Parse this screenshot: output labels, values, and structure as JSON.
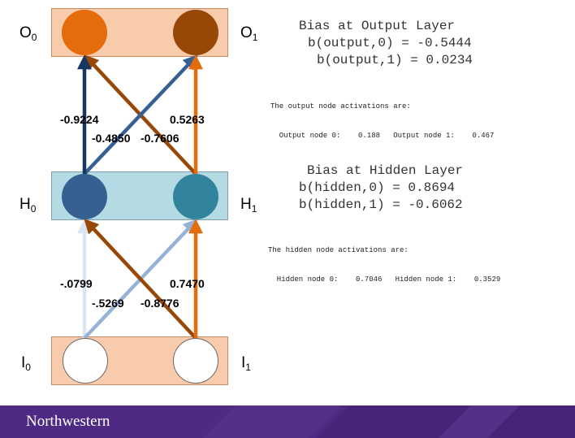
{
  "colors": {
    "layer_fill_orange": "#f8cbad",
    "layer_fill_blue": "#b4dbe3",
    "footer_purple": "#4e2a84"
  },
  "nodes": {
    "O0": {
      "main": "O",
      "sub": "0",
      "color": "#e46c0a"
    },
    "O1": {
      "main": "O",
      "sub": "1",
      "color": "#974706"
    },
    "H0": {
      "main": "H",
      "sub": "0",
      "color": "#376092"
    },
    "H1": {
      "main": "H",
      "sub": "1",
      "color": "#31849b"
    },
    "I0": {
      "main": "I",
      "sub": "0",
      "color": "#ffffff"
    },
    "I1": {
      "main": "I",
      "sub": "1",
      "color": "#ffffff"
    }
  },
  "weights": {
    "h0_o0": {
      "label": "-0.9224",
      "color": "#17375e"
    },
    "h1_o0": {
      "label": "-0.7606",
      "color": "#974706"
    },
    "h0_o1": {
      "label": "-0.4850",
      "color": "#376092"
    },
    "h1_o1": {
      "label": "0.5263",
      "color": "#e46c0a"
    },
    "i0_h0": {
      "label": "-.0799",
      "color": "#dce6f2"
    },
    "i1_h0": {
      "label": "-0.8776",
      "color": "#974706"
    },
    "i0_h1": {
      "label": "-.5269",
      "color": "#95b3d7"
    },
    "i1_h1": {
      "label": "0.7470",
      "color": "#e46c0a"
    }
  },
  "output_bias": {
    "title": "Bias at Output Layer",
    "line0": "b(output,0) = -0.5444",
    "line1": "b(output,1) = 0.0234"
  },
  "output_activations": {
    "heading": "The output node activations are:",
    "line": "  Output node 0:    0.188   Output node 1:    0.467"
  },
  "hidden_bias": {
    "title": "Bias at Hidden Layer",
    "line0": "b(hidden,0) = 0.8694",
    "line1": "b(hidden,1) = -0.6062"
  },
  "hidden_activations": {
    "heading": "The hidden node activations are:",
    "line": "  Hidden node 0:    0.7046   Hidden node 1:    0.3529"
  },
  "footer": {
    "brand": "Northwestern"
  }
}
